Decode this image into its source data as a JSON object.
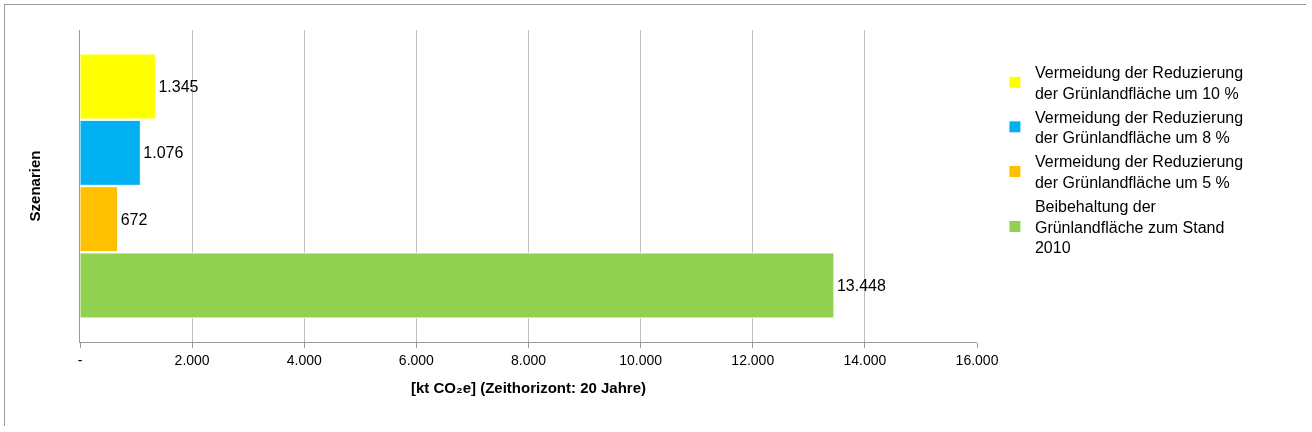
{
  "chart_data": {
    "type": "bar",
    "orientation": "horizontal",
    "xlabel": "[kt CO₂e] (Zeithorizont: 20 Jahre)",
    "ylabel": "Szenarien",
    "categories": [
      null
    ],
    "series": [
      {
        "name": "Vermeidung der Reduzierung der Grünlandfläche um 10 %",
        "color": "#ffff00",
        "values": [
          1345
        ],
        "value_labels": [
          "1.345"
        ]
      },
      {
        "name": "Vermeidung der Reduzierung der Grünlandfläche um 8 %",
        "color": "#00b0f0",
        "values": [
          1076
        ],
        "value_labels": [
          "1.076"
        ]
      },
      {
        "name": "Vermeidung der Reduzierung der Grünlandfläche um 5 %",
        "color": "#ffc000",
        "values": [
          672
        ],
        "value_labels": [
          "672"
        ]
      },
      {
        "name": "Beibehaltung der Grünlandfläche zum Stand 2010",
        "color": "#92d050",
        "values": [
          13448
        ],
        "value_labels": [
          "13.448"
        ]
      }
    ],
    "xlim": [
      0,
      16000
    ],
    "xticks": [
      {
        "value": 0,
        "label": "-"
      },
      {
        "value": 2000,
        "label": "2.000"
      },
      {
        "value": 4000,
        "label": "4.000"
      },
      {
        "value": 6000,
        "label": "6.000"
      },
      {
        "value": 8000,
        "label": "8.000"
      },
      {
        "value": 10000,
        "label": "10.000"
      },
      {
        "value": 12000,
        "label": "12.000"
      },
      {
        "value": 14000,
        "label": "14.000"
      },
      {
        "value": 16000,
        "label": "16.000"
      }
    ],
    "grid": "x",
    "legend": "right"
  }
}
